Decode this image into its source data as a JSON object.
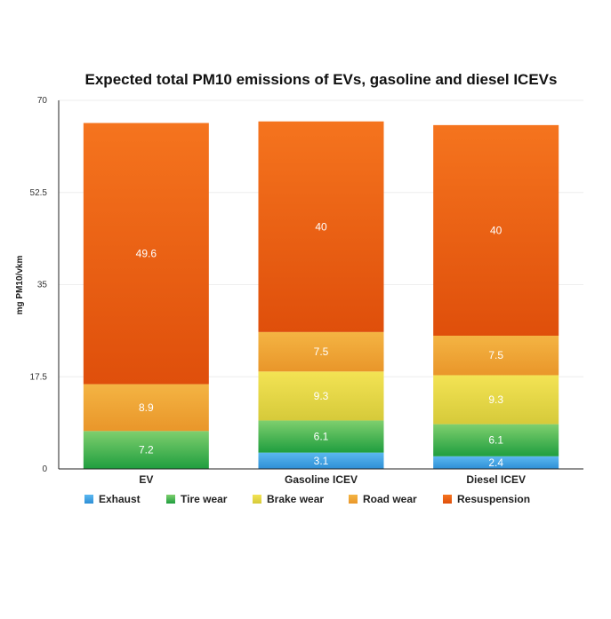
{
  "chart_data": {
    "type": "bar",
    "stacked": true,
    "title": "Expected total PM10 emissions of EVs, gasoline and diesel ICEVs",
    "ylabel": "mg PM10/vkm",
    "xlabel": "",
    "ylim": [
      0,
      70
    ],
    "yticks": [
      "0",
      "17.5",
      "35",
      "52.5",
      "70"
    ],
    "categories": [
      "EV",
      "Gasoline ICEV",
      "Diesel ICEV"
    ],
    "grid": true,
    "legend_position": "bottom",
    "series": [
      {
        "name": "Exhaust",
        "values": [
          0,
          3.1,
          2.4
        ],
        "labels": [
          "",
          "3.1",
          "2.4"
        ],
        "color": "#2e8fd6",
        "color_light": "#5bb8f0"
      },
      {
        "name": "Tire wear",
        "values": [
          7.2,
          6.1,
          6.1
        ],
        "labels": [
          "7.2",
          "6.1",
          "6.1"
        ],
        "color": "#1f9e3f",
        "color_light": "#7fcf6e"
      },
      {
        "name": "Brake wear",
        "values": [
          0,
          9.3,
          9.3
        ],
        "labels": [
          "",
          "9.3",
          "9.3"
        ],
        "color": "#d6ca3a",
        "color_light": "#f3e354"
      },
      {
        "name": "Road wear",
        "values": [
          8.9,
          7.5,
          7.5
        ],
        "labels": [
          "8.9",
          "7.5",
          "7.5"
        ],
        "color": "#e9962a",
        "color_light": "#f4b443"
      },
      {
        "name": "Resuspension",
        "values": [
          49.6,
          40,
          40
        ],
        "labels": [
          "49.6",
          "40",
          "40"
        ],
        "color": "#df4f0b",
        "color_light": "#f5741e"
      }
    ]
  }
}
